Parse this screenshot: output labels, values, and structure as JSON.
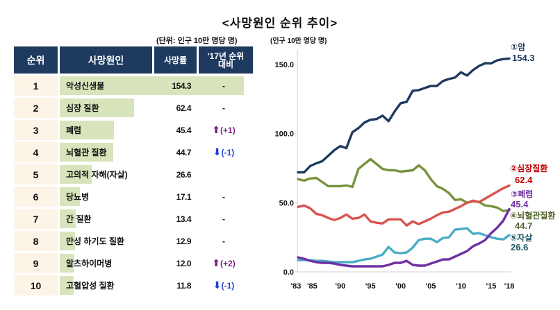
{
  "title": "<사망원인 순위 추이>",
  "table": {
    "unit_label": "(단위: 인구 10만 명당 명)",
    "headers": {
      "rank": "순위",
      "cause": "사망원인",
      "rate": "사망률",
      "compare_line1": "'17년 순위",
      "compare_line2": "대비"
    },
    "rows": [
      {
        "rank": "1",
        "cause": "악성신생물",
        "rate": 154.3,
        "rate_text": "154.3",
        "change": "-",
        "direction": "none"
      },
      {
        "rank": "2",
        "cause": "심장 질환",
        "rate": 62.4,
        "rate_text": "62.4",
        "change": "-",
        "direction": "none"
      },
      {
        "rank": "3",
        "cause": "폐렴",
        "rate": 45.4,
        "rate_text": "45.4",
        "change": "(+1)",
        "direction": "up"
      },
      {
        "rank": "4",
        "cause": "뇌혈관 질환",
        "rate": 44.7,
        "rate_text": "44.7",
        "change": "(-1)",
        "direction": "down"
      },
      {
        "rank": "5",
        "cause": "고의적 자해(자살)",
        "rate": 26.6,
        "rate_text": "26.6",
        "change": "",
        "direction": "none"
      },
      {
        "rank": "6",
        "cause": "당뇨병",
        "rate": 17.1,
        "rate_text": "17.1",
        "change": "-",
        "direction": "none"
      },
      {
        "rank": "7",
        "cause": "간 질환",
        "rate": 13.4,
        "rate_text": "13.4",
        "change": "-",
        "direction": "none"
      },
      {
        "rank": "8",
        "cause": "만성 하기도 질환",
        "rate": 12.9,
        "rate_text": "12.9",
        "change": "-",
        "direction": "none"
      },
      {
        "rank": "9",
        "cause": "알츠하이머병",
        "rate": 12.0,
        "rate_text": "12.0",
        "change": "(+2)",
        "direction": "up"
      },
      {
        "rank": "10",
        "cause": "고혈압성 질환",
        "rate": 11.8,
        "rate_text": "11.8",
        "change": "(-1)",
        "direction": "down"
      }
    ],
    "colors": {
      "header": "#1f3a5f",
      "rank_bg": "#fdf4e8",
      "bar": "#d8e4bc",
      "up": "#7b1f7f",
      "down": "#1f3fd0"
    },
    "icons": {
      "up": "▲-arrow-up-icon",
      "down": "▼-arrow-down-icon"
    }
  },
  "chart_data": {
    "type": "line",
    "title": "<사망원인 순위 추이>",
    "ylabel": "(인구 10만 명당 명)",
    "xlabel": "",
    "ylim": [
      0,
      150
    ],
    "yticks": [
      0,
      50,
      100,
      150
    ],
    "ytick_labels": [
      "0.0",
      "50.0",
      "100.0",
      "150.0"
    ],
    "x": [
      1983,
      1984,
      1985,
      1986,
      1987,
      1988,
      1989,
      1990,
      1991,
      1992,
      1993,
      1994,
      1995,
      1996,
      1997,
      1998,
      1999,
      2000,
      2001,
      2002,
      2003,
      2004,
      2005,
      2006,
      2007,
      2008,
      2009,
      2010,
      2011,
      2012,
      2013,
      2014,
      2015,
      2016,
      2017,
      2018
    ],
    "xticks": [
      1983,
      1985,
      1990,
      1995,
      2000,
      2005,
      2010,
      2015,
      2018
    ],
    "xtick_labels": [
      "'83",
      "'85",
      "'90",
      "'95",
      "'00",
      "'05",
      "'10",
      "'15",
      "'18"
    ],
    "grid": false,
    "legend": "end-of-line labels (right)",
    "series": [
      {
        "name": "①암",
        "end_label": "154.3",
        "color": "#1f3a5f",
        "values": [
          72.0,
          72.0,
          76.5,
          78.5,
          80.0,
          84.0,
          88.0,
          91.0,
          89.5,
          101.0,
          104.0,
          108.0,
          110.0,
          110.5,
          113.0,
          109.0,
          116.0,
          122.0,
          123.0,
          131.0,
          131.5,
          133.0,
          134.5,
          134.5,
          138.0,
          139.5,
          140.5,
          144.4,
          142.0,
          146.0,
          149.0,
          150.9,
          150.8,
          153.0,
          153.9,
          154.3
        ]
      },
      {
        "name": "②심장질환",
        "end_label": "62.4",
        "color": "#d9534f",
        "label_color": "#c00000",
        "values": [
          47.0,
          48.0,
          46.0,
          42.0,
          41.0,
          39.0,
          37.5,
          39.0,
          41.5,
          38.5,
          39.0,
          41.5,
          36.5,
          35.5,
          35.0,
          38.0,
          38.0,
          38.0,
          33.5,
          36.5,
          34.5,
          36.5,
          38.5,
          41.0,
          43.0,
          43.5,
          45.5,
          47.5,
          50.0,
          51.5,
          50.5,
          53.0,
          55.5,
          58.0,
          60.5,
          62.4
        ]
      },
      {
        "name": "③폐렴",
        "end_label": "45.4",
        "color": "#7030a0",
        "values": [
          10.5,
          9.5,
          8.0,
          7.0,
          6.5,
          6.5,
          6.0,
          5.0,
          4.5,
          4.0,
          4.0,
          4.0,
          4.0,
          4.0,
          4.0,
          5.0,
          6.5,
          6.5,
          8.0,
          5.0,
          4.5,
          4.5,
          6.0,
          7.5,
          9.0,
          9.0,
          11.0,
          13.0,
          15.0,
          18.5,
          20.5,
          23.0,
          28.0,
          32.0,
          37.0,
          45.4
        ]
      },
      {
        "name": "④뇌혈관질환",
        "end_label": "44.7",
        "color": "#77933c",
        "label_color": "#4f6228",
        "values": [
          67.0,
          66.0,
          67.5,
          68.0,
          65.0,
          62.0,
          62.0,
          62.0,
          62.5,
          61.5,
          74.5,
          78.0,
          81.5,
          78.0,
          74.5,
          73.5,
          73.5,
          72.5,
          73.0,
          73.5,
          77.0,
          73.5,
          67.0,
          62.0,
          60.0,
          57.0,
          52.0,
          52.5,
          50.0,
          51.0,
          50.5,
          48.0,
          47.5,
          46.5,
          44.0,
          44.7
        ]
      },
      {
        "name": "⑤자살",
        "end_label": "26.6",
        "color": "#4bacc6",
        "label_color": "#215868",
        "values": [
          8.5,
          8.5,
          8.5,
          8.0,
          8.0,
          7.5,
          7.0,
          7.0,
          7.0,
          7.0,
          8.0,
          9.0,
          9.5,
          11.0,
          12.5,
          18.0,
          14.0,
          13.5,
          14.0,
          17.5,
          23.0,
          24.0,
          24.0,
          21.5,
          24.5,
          25.0,
          30.5,
          31.0,
          31.5,
          27.5,
          28.0,
          26.5,
          25.0,
          24.0,
          23.5,
          26.6
        ]
      }
    ]
  }
}
